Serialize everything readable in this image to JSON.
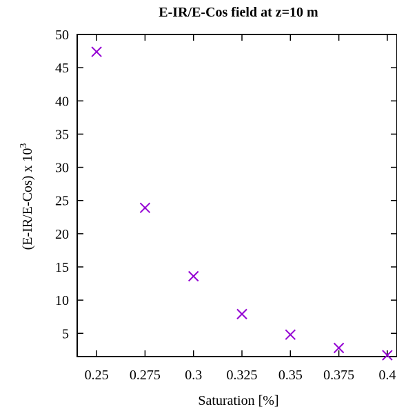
{
  "chart_data": {
    "type": "scatter",
    "title": "E-IR/E-Cos field at z=10 m",
    "xlabel": "Saturation [%]",
    "ylabel_main": "(E-IR/E-Cos) x 10",
    "ylabel_sup": "3",
    "xlim": [
      0.24,
      0.405
    ],
    "ylim": [
      1.5,
      50
    ],
    "x_ticks": [
      0.25,
      0.275,
      0.3,
      0.325,
      0.35,
      0.375,
      0.4
    ],
    "x_tick_labels": [
      "0.25",
      "0.275",
      "0.3",
      "0.325",
      "0.35",
      "0.375",
      "0.4"
    ],
    "y_ticks": [
      5,
      10,
      15,
      20,
      25,
      30,
      35,
      40,
      45,
      50
    ],
    "y_tick_labels": [
      "5",
      "10",
      "15",
      "20",
      "25",
      "30",
      "35",
      "40",
      "45",
      "50"
    ],
    "marker": "x",
    "marker_color": "#9400d3",
    "grid": false,
    "series": [
      {
        "x": [
          0.25,
          0.275,
          0.3,
          0.325,
          0.35,
          0.375,
          0.4
        ],
        "y": [
          47.4,
          23.9,
          13.6,
          7.9,
          4.8,
          2.8,
          1.7
        ]
      }
    ]
  }
}
